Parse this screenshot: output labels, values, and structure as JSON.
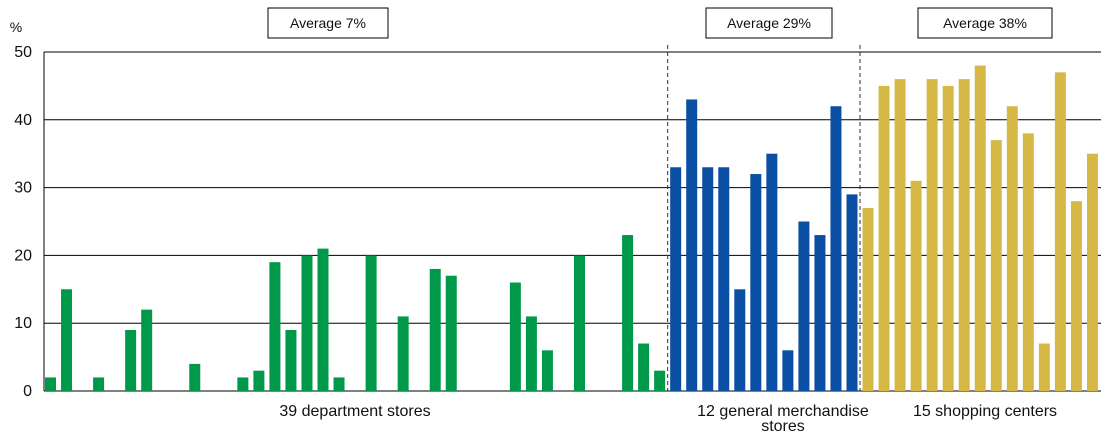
{
  "chart_data": {
    "type": "bar",
    "ylabel": "%",
    "ylim": [
      0,
      50
    ],
    "yticks": [
      0,
      10,
      20,
      30,
      40,
      50
    ],
    "grid": true,
    "groups": [
      {
        "label": "39 department stores",
        "average_label": "Average 7%",
        "color": "#00994a",
        "values": [
          2,
          15,
          0,
          2,
          0,
          9,
          12,
          0,
          0,
          4,
          0,
          0,
          2,
          3,
          19,
          9,
          20,
          21,
          2,
          0,
          20,
          0,
          11,
          0,
          18,
          17,
          0,
          0,
          0,
          16,
          11,
          6,
          0,
          20,
          0,
          0,
          23,
          7,
          3
        ]
      },
      {
        "label": "12 general merchandise stores",
        "average_label": "Average 29%",
        "color": "#0a4fa3",
        "values": [
          33,
          43,
          33,
          33,
          15,
          32,
          35,
          6,
          25,
          23,
          42,
          29
        ]
      },
      {
        "label": "15 shopping centers",
        "average_label": "Average 38%",
        "color": "#d6b846",
        "values": [
          27,
          45,
          46,
          31,
          46,
          45,
          46,
          48,
          37,
          42,
          38,
          7,
          47,
          28,
          35
        ]
      }
    ]
  }
}
